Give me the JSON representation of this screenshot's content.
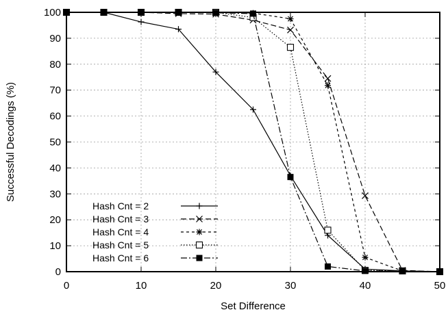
{
  "chart_data": {
    "type": "line",
    "xlabel": "Set Difference",
    "ylabel": "Successful Decodings (%)",
    "xlim": [
      0,
      50
    ],
    "ylim": [
      0,
      100
    ],
    "xticks": [
      0,
      10,
      20,
      30,
      40,
      50
    ],
    "yticks": [
      0,
      10,
      20,
      30,
      40,
      50,
      60,
      70,
      80,
      90,
      100
    ],
    "grid": true,
    "legend_position": "bottom-left",
    "series": [
      {
        "name": "Hash Cnt = 2",
        "marker": "plus",
        "dash": "solid",
        "x": [
          0,
          5,
          10,
          15,
          20,
          25,
          30,
          35,
          40,
          45,
          50
        ],
        "y": [
          100,
          100,
          96.3,
          93.5,
          77,
          62.5,
          37,
          14,
          1,
          0.3,
          0
        ]
      },
      {
        "name": "Hash Cnt = 3",
        "marker": "cross",
        "dash": "long-dash",
        "x": [
          0,
          5,
          10,
          15,
          20,
          25,
          30,
          35,
          40,
          45,
          50
        ],
        "y": [
          100,
          100,
          100,
          99.5,
          99.3,
          97,
          93.2,
          74.5,
          29.3,
          0.5,
          0
        ]
      },
      {
        "name": "Hash Cnt = 4",
        "marker": "star",
        "dash": "short-dash",
        "x": [
          0,
          5,
          10,
          15,
          20,
          25,
          30,
          35,
          40,
          45,
          50
        ],
        "y": [
          100,
          100,
          100,
          100,
          100,
          99.7,
          97.5,
          71.8,
          5.5,
          0.3,
          0
        ]
      },
      {
        "name": "Hash Cnt = 5",
        "marker": "open-square",
        "dash": "dotted",
        "x": [
          0,
          5,
          10,
          15,
          20,
          25,
          30,
          35,
          40,
          45,
          50
        ],
        "y": [
          100,
          100,
          100,
          100,
          100,
          98,
          86.5,
          16,
          0.5,
          0.3,
          0
        ]
      },
      {
        "name": "Hash Cnt = 6",
        "marker": "filled-square",
        "dash": "dash-dot",
        "x": [
          0,
          5,
          10,
          15,
          20,
          25,
          30,
          35,
          40,
          45,
          50
        ],
        "y": [
          100,
          100,
          100,
          100,
          99.8,
          99.5,
          36.5,
          2,
          0.3,
          0.3,
          0
        ]
      }
    ]
  }
}
